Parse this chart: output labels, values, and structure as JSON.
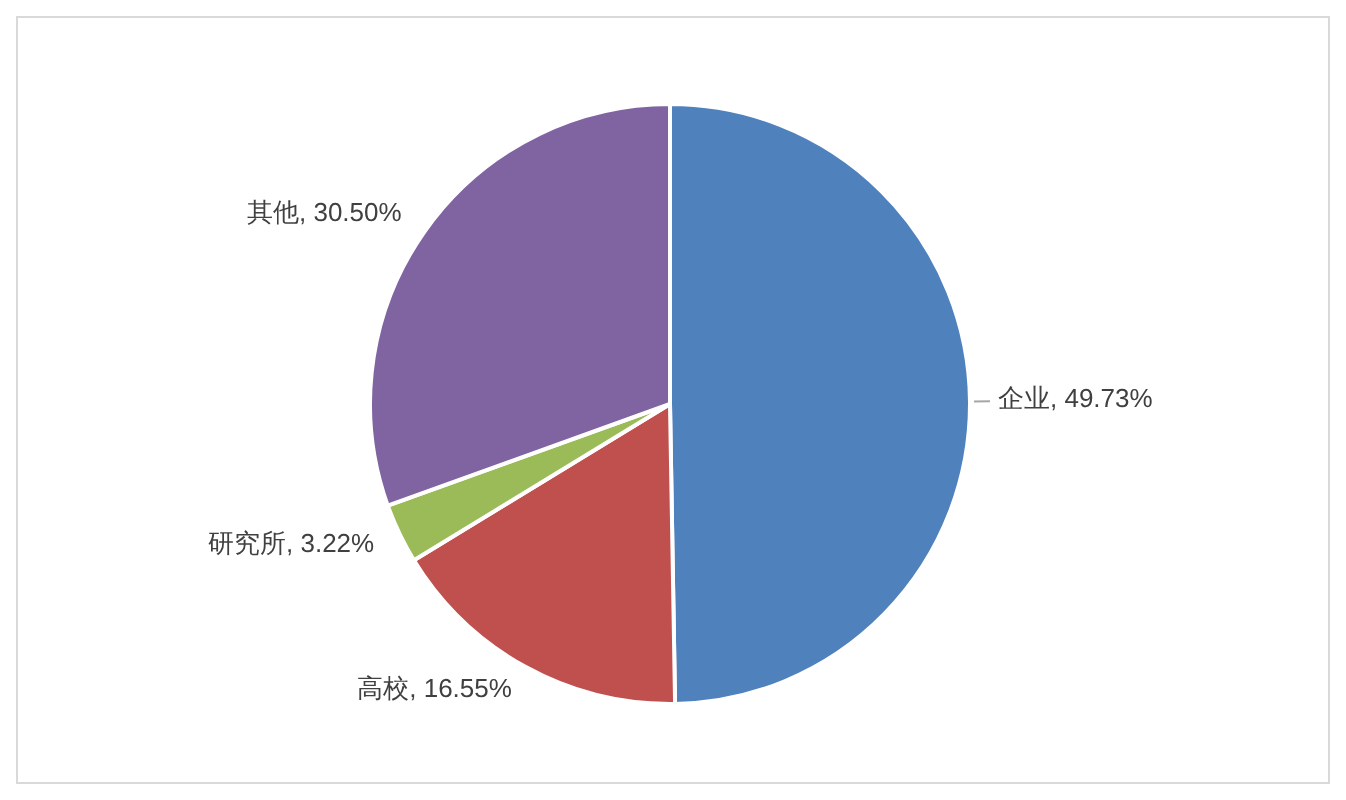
{
  "chart_data": {
    "type": "pie",
    "categories": [
      "企业",
      "高校",
      "研究所",
      "其他"
    ],
    "values": [
      49.73,
      16.55,
      3.22,
      30.5
    ],
    "colors": [
      "#4f81bd",
      "#c0504d",
      "#9bbb59",
      "#8064a2"
    ],
    "value_labels": [
      ", 49.73%",
      ", 16.55%",
      ", 3.22%",
      ", 30.50%"
    ],
    "legend": false
  }
}
